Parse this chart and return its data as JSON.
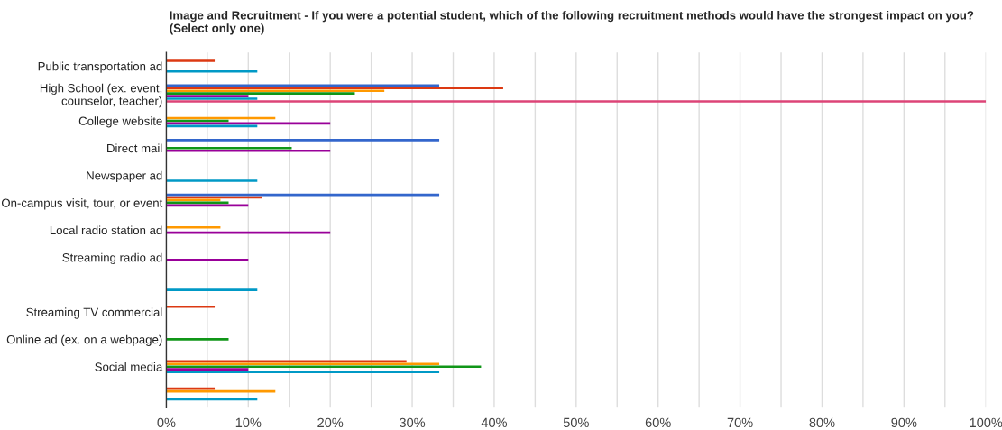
{
  "chart_data": {
    "type": "bar",
    "orientation": "horizontal",
    "title": "Image and Recruitment - If you were a potential student, which of the following recruitment methods would have the strongest impact on you? (Select only one)",
    "categories": [
      "Public transportation ad",
      "High School (ex. event,\ncounselor, teacher)",
      "College website",
      "Direct mail",
      "Newspaper ad",
      "On-campus visit, tour, or event",
      "Local radio station ad",
      "Streaming radio ad",
      null,
      "Streaming TV commercial",
      "Online ad (ex. on a webpage)",
      "Social media",
      null
    ],
    "series": [
      {
        "color": "#3366cc",
        "values": [
          null,
          33.3,
          null,
          33.3,
          null,
          33.3,
          null,
          null,
          null,
          null,
          null,
          null,
          null
        ]
      },
      {
        "color": "#dc3912",
        "values": [
          5.9,
          41.1,
          null,
          null,
          null,
          11.7,
          null,
          null,
          null,
          5.9,
          null,
          29.3,
          5.9
        ]
      },
      {
        "color": "#ff9900",
        "values": [
          null,
          26.6,
          13.3,
          null,
          null,
          6.6,
          6.6,
          null,
          null,
          null,
          null,
          33.3,
          13.3
        ]
      },
      {
        "color": "#109618",
        "values": [
          null,
          23.0,
          7.6,
          15.3,
          null,
          7.6,
          null,
          null,
          null,
          null,
          7.6,
          38.4,
          null
        ]
      },
      {
        "color": "#990099",
        "values": [
          null,
          10.0,
          20.0,
          20.0,
          null,
          10.0,
          20.0,
          10.0,
          null,
          null,
          null,
          10.0,
          null
        ]
      },
      {
        "color": "#0099c6",
        "values": [
          11.1,
          11.1,
          11.1,
          null,
          11.1,
          null,
          null,
          null,
          11.1,
          null,
          null,
          33.3,
          11.1
        ]
      },
      {
        "color": "#dd4477",
        "values": [
          null,
          100,
          null,
          null,
          null,
          null,
          null,
          null,
          null,
          null,
          null,
          null,
          null
        ]
      }
    ],
    "xlim": [
      0,
      100
    ],
    "xticks": [
      {
        "value": 0,
        "label": "0%"
      },
      {
        "value": 5,
        "label": null
      },
      {
        "value": 10,
        "label": "10%"
      },
      {
        "value": 15,
        "label": null
      },
      {
        "value": 20,
        "label": "20%"
      },
      {
        "value": 25,
        "label": null
      },
      {
        "value": 30,
        "label": "30%"
      },
      {
        "value": 35,
        "label": null
      },
      {
        "value": 40,
        "label": "40%"
      },
      {
        "value": 45,
        "label": null
      },
      {
        "value": 50,
        "label": "50%"
      },
      {
        "value": 55,
        "label": null
      },
      {
        "value": 60,
        "label": "60%"
      },
      {
        "value": 65,
        "label": null
      },
      {
        "value": 70,
        "label": "70%"
      },
      {
        "value": 75,
        "label": null
      },
      {
        "value": 80,
        "label": "80%"
      },
      {
        "value": 85,
        "label": null
      },
      {
        "value": 90,
        "label": "90%"
      },
      {
        "value": 95,
        "label": null
      },
      {
        "value": 100,
        "label": "100%"
      }
    ],
    "grid": "x"
  }
}
